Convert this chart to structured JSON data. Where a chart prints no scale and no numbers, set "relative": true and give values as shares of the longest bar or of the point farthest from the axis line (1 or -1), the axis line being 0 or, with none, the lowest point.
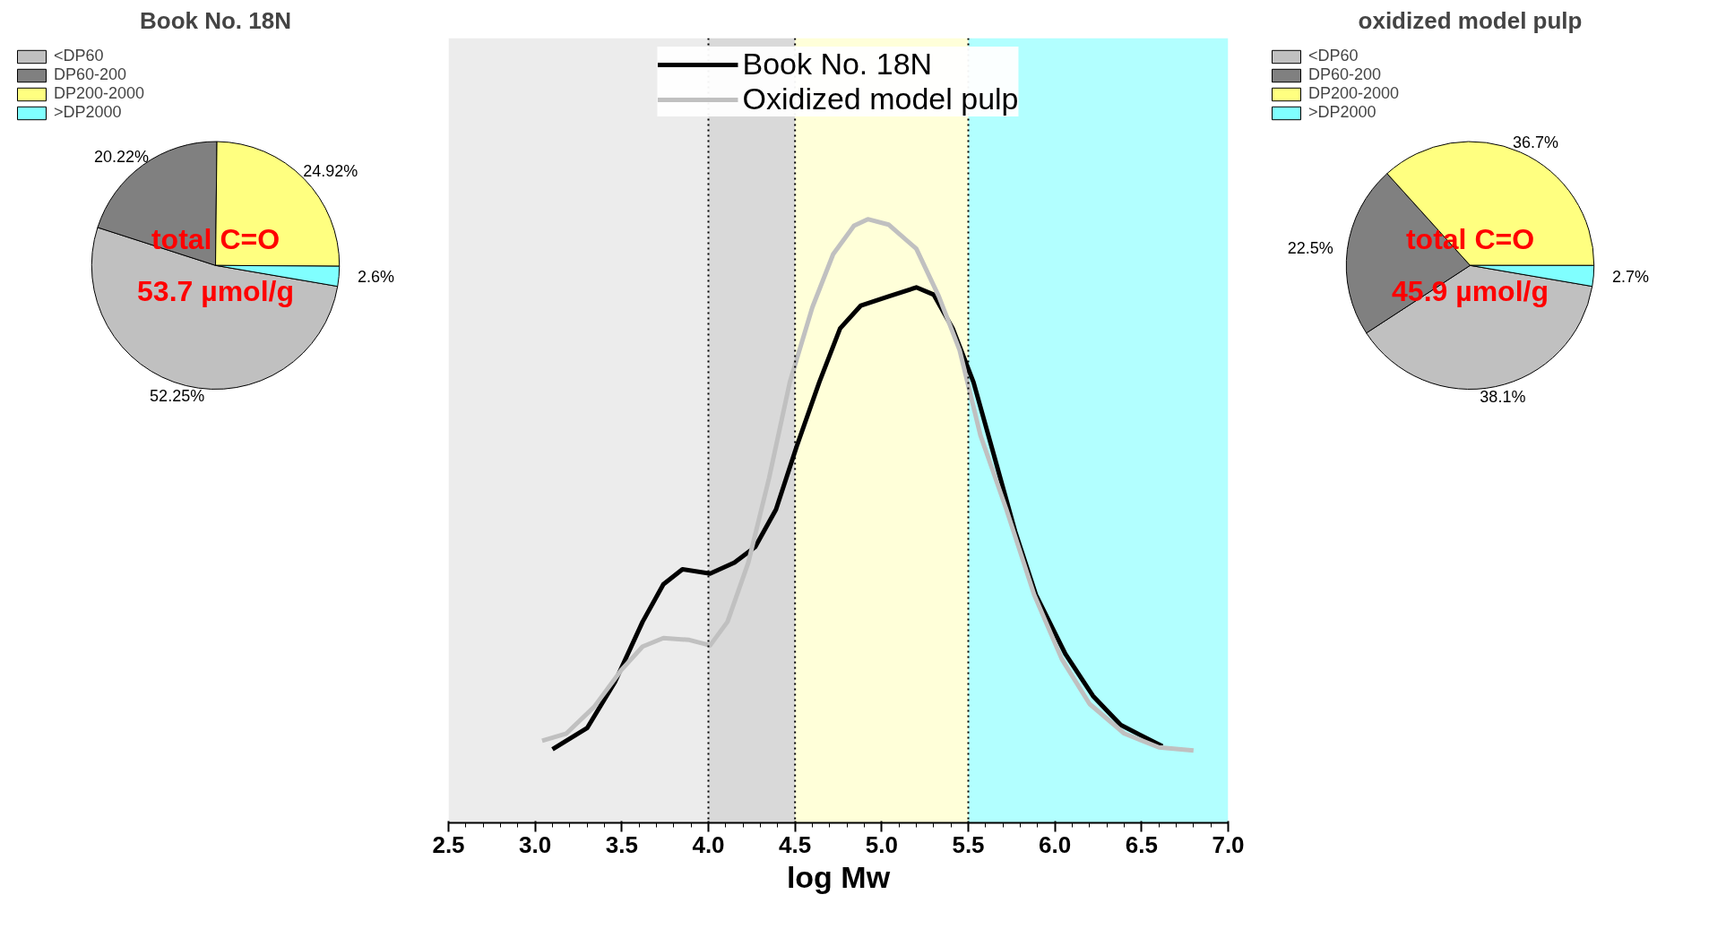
{
  "chart_data": [
    {
      "type": "line",
      "xlabel": "log Mw",
      "relative": true,
      "xlim": [
        2.5,
        7.0
      ],
      "xticks": [
        2.5,
        {
          "value": 3,
          "label": "3.0"
        },
        3.5,
        {
          "value": 4,
          "label": "4.0"
        },
        4.5,
        {
          "value": 5,
          "label": "5.0"
        },
        5.5,
        {
          "value": 6,
          "label": "6.0"
        },
        6.5,
        {
          "value": 7,
          "label": "7.0"
        }
      ],
      "tick_labels": "x",
      "legend": "top",
      "grid": false,
      "line_style": "solid",
      "series": [
        {
          "name": "Book No. 18N",
          "color": "#000000",
          "x": [
            3.1,
            3.3,
            3.46,
            3.62,
            3.74,
            3.85,
            4.01,
            4.15,
            4.27,
            4.39,
            4.51,
            4.64,
            4.76,
            4.88,
            5.04,
            5.2,
            5.3,
            5.41,
            5.53,
            5.65,
            5.77,
            5.89,
            6.06,
            6.22,
            6.38,
            6.62
          ],
          "values": [
            0.122,
            0.157,
            0.233,
            0.333,
            0.395,
            0.42,
            0.413,
            0.431,
            0.457,
            0.519,
            0.624,
            0.73,
            0.819,
            0.857,
            0.872,
            0.887,
            0.875,
            0.819,
            0.73,
            0.607,
            0.483,
            0.378,
            0.28,
            0.21,
            0.162,
            0.127
          ]
        },
        {
          "name": "Oxidized model pulp",
          "color": "#c0c0c0",
          "x": [
            3.04,
            3.18,
            3.34,
            3.5,
            3.62,
            3.74,
            3.89,
            4.01,
            4.11,
            4.23,
            4.35,
            4.47,
            4.6,
            4.72,
            4.84,
            4.92,
            5.04,
            5.2,
            5.33,
            5.45,
            5.57,
            5.72,
            5.88,
            6.04,
            6.2,
            6.4,
            6.6,
            6.8
          ],
          "values": [
            0.136,
            0.148,
            0.192,
            0.254,
            0.292,
            0.306,
            0.303,
            0.294,
            0.333,
            0.431,
            0.571,
            0.73,
            0.854,
            0.942,
            0.989,
            1.0,
            0.991,
            0.951,
            0.872,
            0.783,
            0.642,
            0.519,
            0.378,
            0.271,
            0.197,
            0.148,
            0.125,
            0.12
          ]
        }
      ],
      "ref_lines": [
        {
          "axis": "x",
          "value": 4.0,
          "line_style": "dotted"
        },
        {
          "axis": "x",
          "value": 4.5,
          "line_style": "dotted"
        },
        {
          "axis": "x",
          "value": 5.5,
          "line_style": "dotted"
        }
      ],
      "bands": [
        {
          "axis": "x",
          "from": 2.5,
          "to": 4.0,
          "color": "#c0c0c0"
        },
        {
          "axis": "x",
          "from": 4.0,
          "to": 4.5,
          "color": "#808080"
        },
        {
          "axis": "x",
          "from": 4.5,
          "to": 5.5,
          "color": "#ffff80"
        },
        {
          "axis": "x",
          "from": 5.5,
          "to": 7.0,
          "color": "#00ffff"
        }
      ]
    },
    {
      "type": "pie",
      "title": "Book No. 18N",
      "legend": "top left",
      "categories": [
        "<DP60",
        "DP60-200",
        "DP200-2000",
        ">DP2000"
      ],
      "values": [
        52.25,
        20.22,
        24.92,
        2.6
      ],
      "value_labels": [
        "52.25%",
        "20.22%",
        "24.92%",
        "2.6%"
      ],
      "colors": [
        "#c0c0c0",
        "#808080",
        "#ffff80",
        "#80ffff"
      ],
      "annotations": [
        "total C=O",
        "53.7 µmol/g"
      ]
    },
    {
      "type": "pie",
      "title": "oxidized model pulp",
      "legend": "top left",
      "categories": [
        "<DP60",
        "DP60-200",
        "DP200-2000",
        ">DP2000"
      ],
      "values": [
        38.1,
        22.5,
        36.7,
        2.7
      ],
      "value_labels": [
        "38.1%",
        "22.5%",
        "36.7%",
        "2.7%"
      ],
      "colors": [
        "#c0c0c0",
        "#808080",
        "#ffff80",
        "#80ffff"
      ],
      "annotations": [
        "total C=O",
        "45.9 µmol/g"
      ]
    }
  ]
}
